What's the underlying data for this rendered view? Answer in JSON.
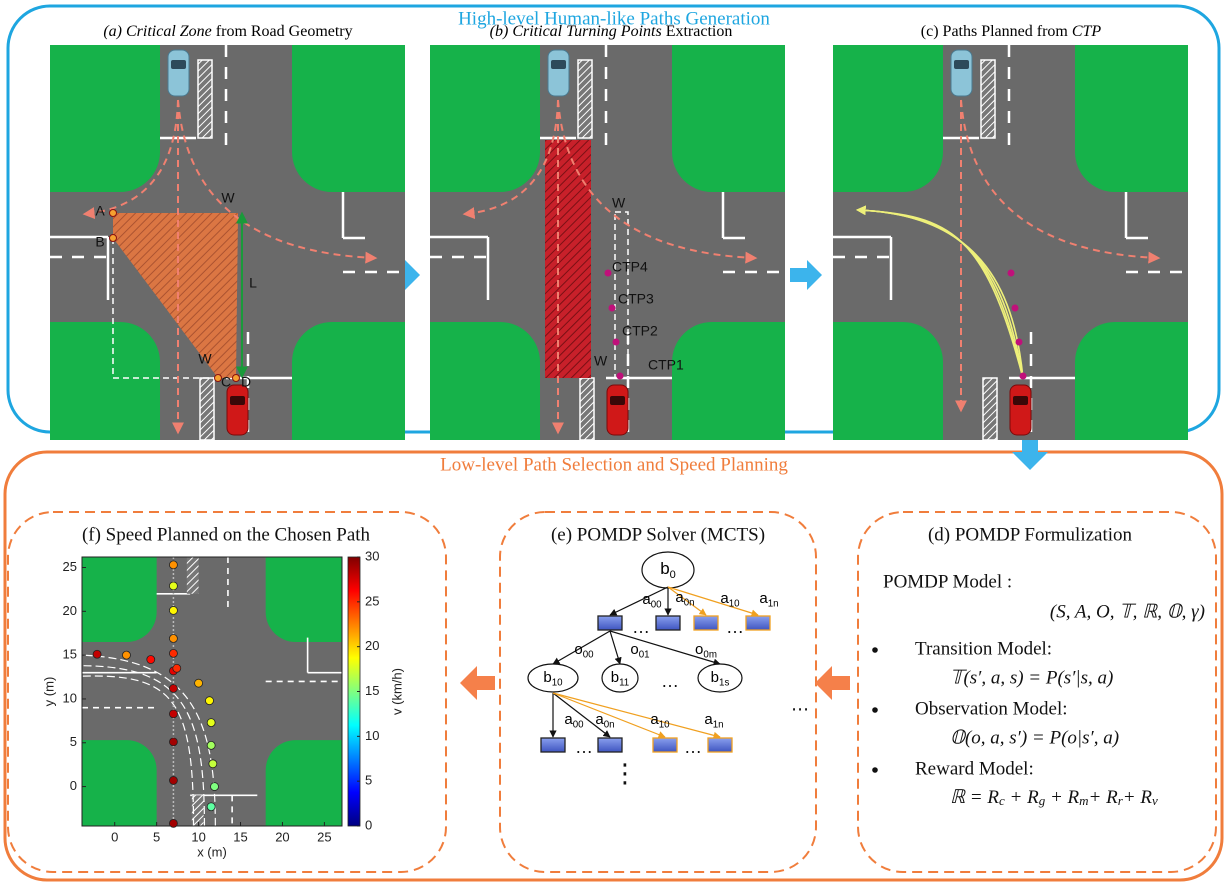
{
  "top": {
    "title": "High-level Human-like Paths Generation",
    "panel_a": {
      "title_parts": [
        "(a) Critical Zone",
        " from Road Geometry"
      ],
      "title_italic": [
        true,
        false
      ],
      "labels": [
        "A",
        "B",
        "W",
        "L",
        "W",
        "C",
        "D"
      ]
    },
    "panel_b": {
      "title_parts": [
        "(b) Critical Turning Points",
        " Extraction"
      ],
      "title_italic": [
        true,
        false
      ],
      "labels": [
        "W",
        "CTP4",
        "CTP3",
        "CTP2",
        "W",
        "CTP1"
      ]
    },
    "panel_c": {
      "title_parts": [
        "(c) Paths Planned from ",
        "CTP"
      ],
      "title_italic": [
        false,
        true
      ]
    }
  },
  "bottom": {
    "title": "Low-level Path Selection and Speed Planning",
    "panel_f": {
      "title": "(f) Speed Planned on the Chosen Path",
      "speed_plot": {
        "x_label": "x (m)",
        "y_label": "y (m)",
        "colorbar_label": "v (km/h)",
        "xlim": [
          -3.9,
          27.1
        ],
        "ylim": [
          -4.5,
          26.2
        ],
        "xticks": [
          0,
          5,
          10,
          15,
          20,
          25
        ],
        "yticks": [
          0,
          5,
          10,
          15,
          20,
          25
        ],
        "clim": [
          0,
          30
        ],
        "cticks": [
          0,
          5,
          10,
          15,
          20,
          25,
          30
        ],
        "paths": [
          {
            "x": [
              7,
              7,
              7,
              7,
              7,
              7,
              7,
              7,
              7,
              7,
              7
            ],
            "y": [
              -4.2,
              0.7,
              5.1,
              8.3,
              11.2,
              13.2,
              15.2,
              16.9,
              20.1,
              22.9,
              25.3
            ],
            "v": [
              29,
              29,
              29,
              28,
              28,
              27,
              25,
              22,
              19,
              18,
              22
            ]
          },
          {
            "x": [
              11.5,
              11.9,
              11.7,
              11.5,
              11.5,
              11.3,
              10,
              7.4,
              4.3,
              1.4,
              -2.1
            ],
            "y": [
              -2.3,
              0,
              2.6,
              4.7,
              7.3,
              9.8,
              11.8,
              13.5,
              14.5,
              15,
              15.1
            ],
            "v": [
              14,
              15,
              17,
              16,
              18,
              19,
              21,
              25,
              26,
              22,
              28
            ]
          }
        ]
      }
    },
    "panel_e": {
      "title": "(e) POMDP Solver (MCTS)",
      "root": {
        "base": "b",
        "sub": "0"
      },
      "root_actions": [
        {
          "base": "a",
          "sub": "00"
        },
        {
          "base": "a",
          "sub": "0n"
        },
        {
          "base": "a",
          "sub": "10"
        },
        {
          "base": "a",
          "sub": "1n"
        }
      ],
      "observations": [
        {
          "base": "o",
          "sub": "00"
        },
        {
          "base": "o",
          "sub": "01"
        },
        {
          "base": "o",
          "sub": "0m"
        }
      ],
      "beliefs": [
        {
          "base": "b",
          "sub": "10"
        },
        {
          "base": "b",
          "sub": "11"
        },
        {
          "base": "b",
          "sub": "1s"
        }
      ],
      "child_actions": [
        {
          "base": "a",
          "sub": "00"
        },
        {
          "base": "a",
          "sub": "0n"
        },
        {
          "base": "a",
          "sub": "10"
        },
        {
          "base": "a",
          "sub": "1n"
        }
      ],
      "ellipses": [
        "…",
        "…",
        "…",
        "…",
        "…",
        "⋯",
        "⋮"
      ]
    },
    "panel_d": {
      "title": "(d) POMDP Formulization",
      "model_label": "POMDP Model :",
      "model_tuple": "(S, A, O, 𝕋, ℝ, 𝕆, γ)",
      "items": [
        {
          "name": "Transition Model:",
          "formula": "𝕋(s′, a, s) = P(s′|s, a)"
        },
        {
          "name": "Observation Model:",
          "formula": "𝕆(o, a, s′) = P(o|s′, a)"
        },
        {
          "name": "Reward Model:",
          "formula_parts": [
            "ℝ = R",
            "c",
            " + R",
            "g",
            " + R",
            "m",
            "+ R",
            "r",
            "+ R",
            "v"
          ]
        }
      ]
    }
  }
}
